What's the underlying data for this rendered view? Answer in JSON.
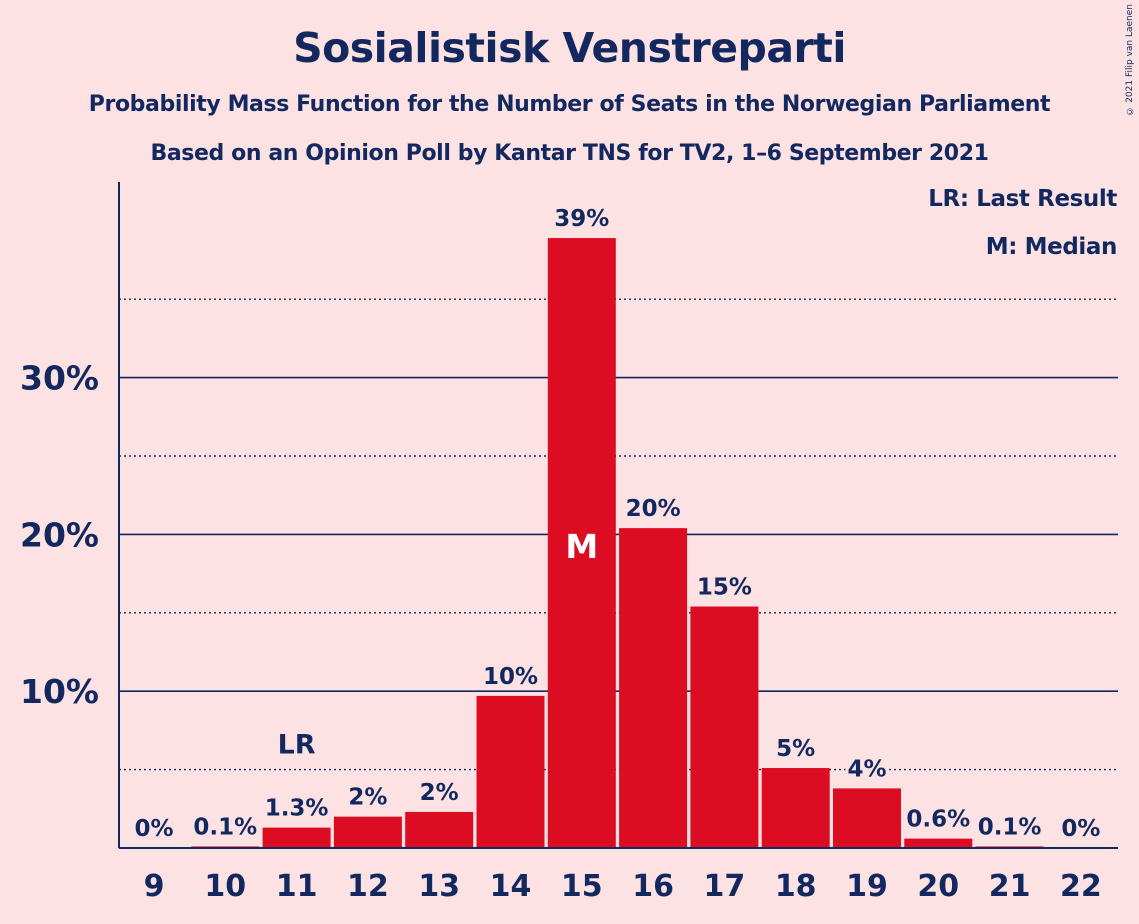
{
  "copyright": "© 2021 Filip van Laenen",
  "legend": {
    "lr": "LR: Last Result",
    "m": "M: Median"
  },
  "chart_data": {
    "type": "bar",
    "title": "Sosialistisk Venstreparti",
    "subtitle": "Probability Mass Function for the Number of Seats in the Norwegian Parliament",
    "subtitle2": "Based on an Opinion Poll by Kantar TNS for TV2, 1–6 September 2021",
    "categories": [
      "9",
      "10",
      "11",
      "12",
      "13",
      "14",
      "15",
      "16",
      "17",
      "18",
      "19",
      "20",
      "21",
      "22"
    ],
    "values": [
      0,
      0.1,
      1.3,
      2.0,
      2.3,
      9.7,
      38.9,
      20.4,
      15.4,
      5.1,
      3.8,
      0.6,
      0.1,
      0
    ],
    "data_labels": [
      "0%",
      "0.1%",
      "1.3%",
      "2%",
      "2%",
      "10%",
      "39%",
      "20%",
      "15%",
      "5%",
      "4%",
      "0.6%",
      "0.1%",
      "0%"
    ],
    "ylim": [
      0,
      42
    ],
    "yticks": [
      10,
      20,
      30
    ],
    "ytick_labels": [
      "10%",
      "20%",
      "30%"
    ],
    "minor_gridlines": [
      5,
      15,
      25,
      35
    ],
    "last_result": {
      "category": "11",
      "label": "LR"
    },
    "median": {
      "category": "15",
      "label": "M"
    },
    "colors": {
      "bar": "#dc0c23",
      "axis": "#12285e",
      "background": "#fde2e4"
    }
  }
}
